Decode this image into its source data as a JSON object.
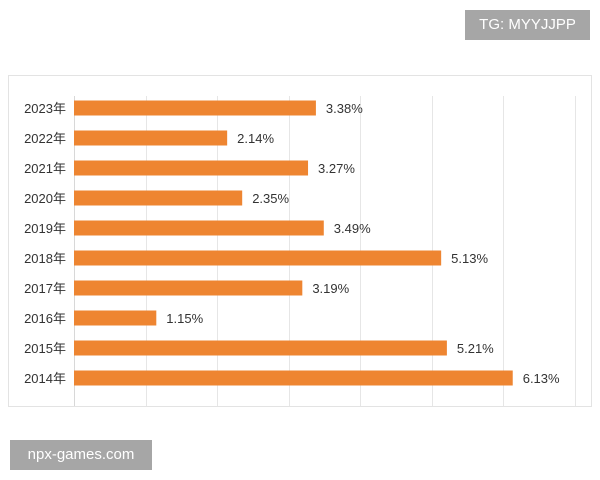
{
  "watermarks": {
    "top": "TG: MYYJJPP",
    "bottom": "npx-games.com"
  },
  "colors": {
    "bar": "#ee8531",
    "grid": "#e6e6e6",
    "axis": "#d8d8d8",
    "label_text": "#333333"
  },
  "chart_data": {
    "type": "bar",
    "orientation": "horizontal",
    "title": "",
    "xlabel": "",
    "ylabel": "",
    "categories": [
      "2023年",
      "2022年",
      "2021年",
      "2020年",
      "2019年",
      "2018年",
      "2017年",
      "2016年",
      "2015年",
      "2014年"
    ],
    "values": [
      3.38,
      2.14,
      3.27,
      2.35,
      3.49,
      5.13,
      3.19,
      1.15,
      5.21,
      6.13
    ],
    "value_labels": [
      "3.38%",
      "2.14%",
      "3.27%",
      "2.35%",
      "3.49%",
      "5.13%",
      "3.19%",
      "1.15%",
      "5.21%",
      "6.13%"
    ],
    "xlim": [
      0,
      7
    ],
    "grid": true,
    "legend": "none"
  }
}
